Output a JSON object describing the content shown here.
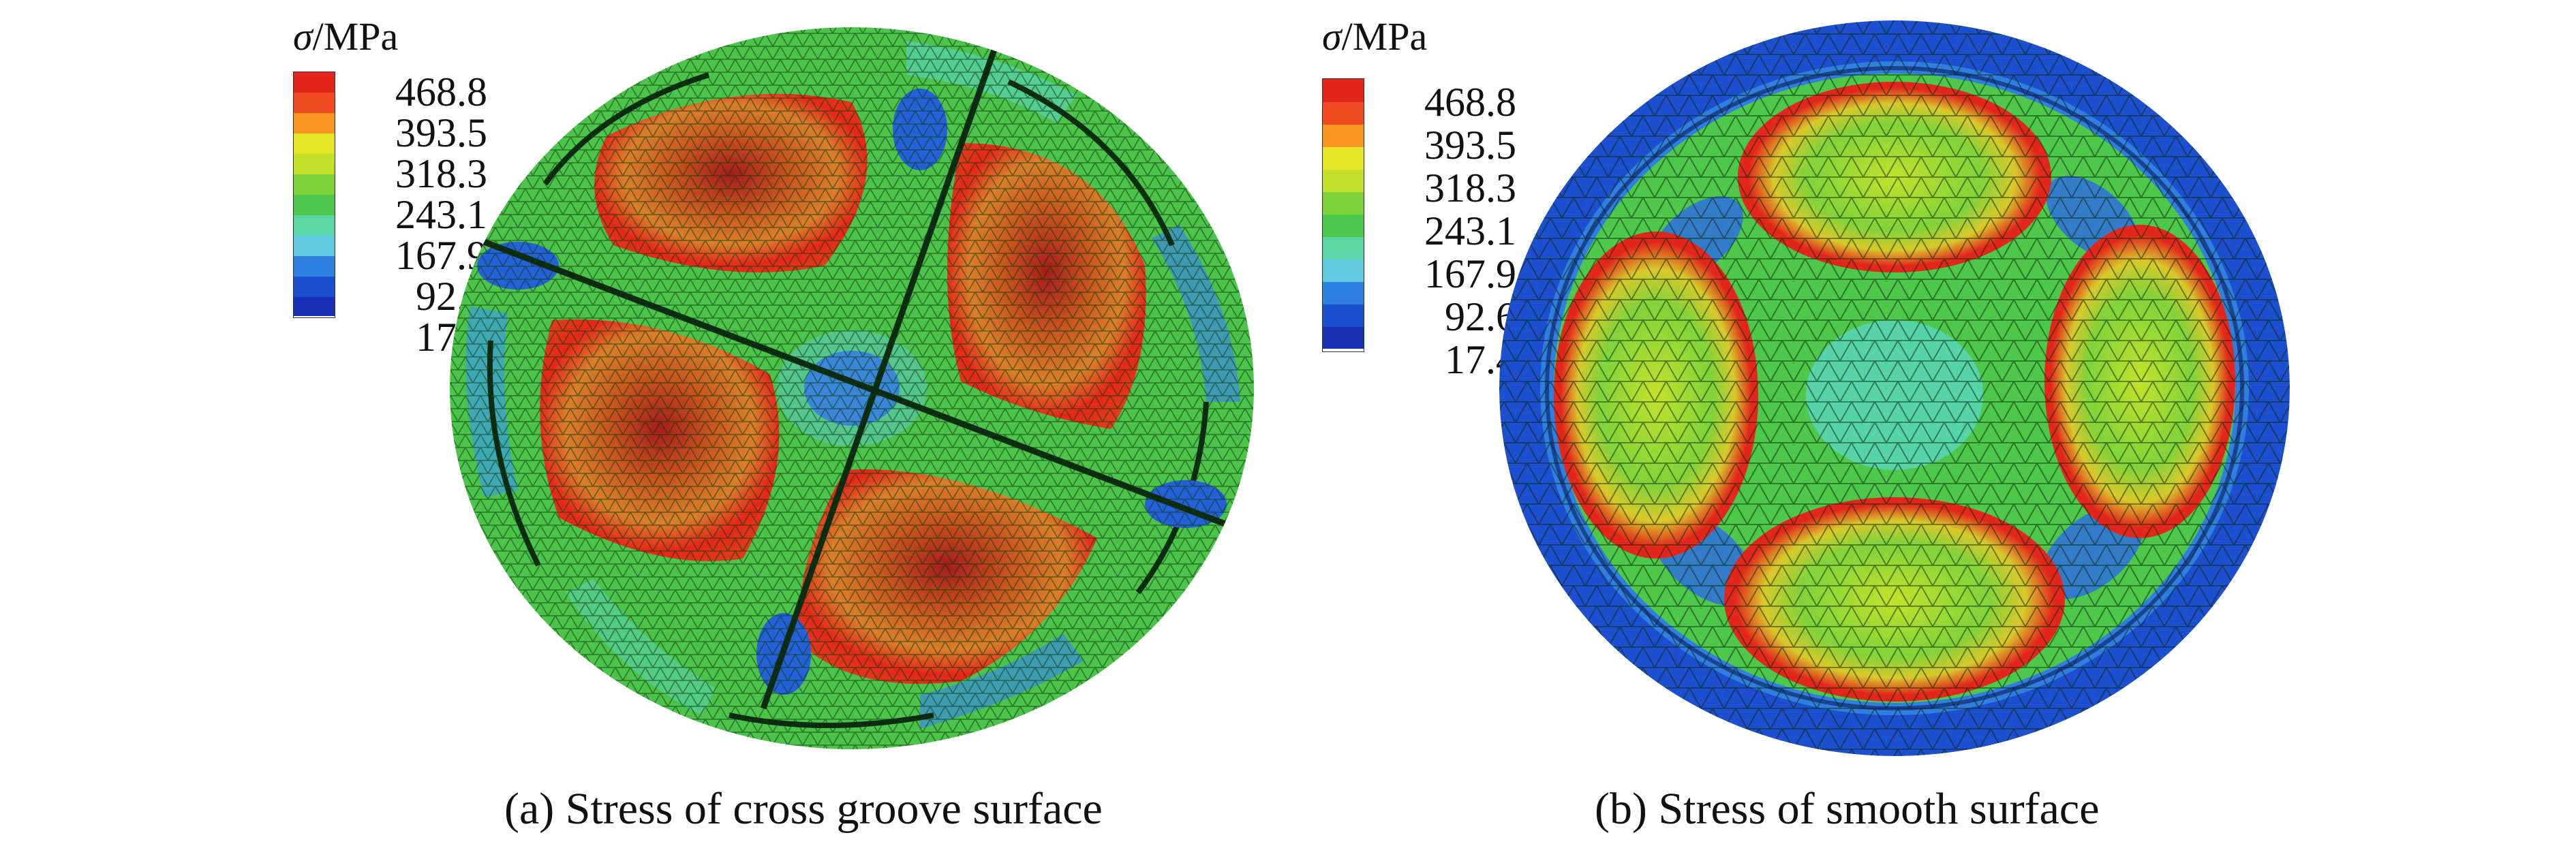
{
  "legend": {
    "symbol": "σ",
    "unit": "/MPa",
    "levels": [
      "468.8",
      "393.5",
      "318.3",
      "243.1",
      "167.9",
      "92.6",
      "17.4"
    ],
    "colors": [
      "#e3261b",
      "#f04a23",
      "#f7931e",
      "#e6e629",
      "#c4e12a",
      "#7fd33a",
      "#4dc84a",
      "#59d6a6",
      "#5fc9e0",
      "#2f7fe0",
      "#1d4fd1",
      "#1a2fb8"
    ]
  },
  "panels": [
    {
      "caption": "(a) Stress of cross groove surface",
      "surface": "cross-groove"
    },
    {
      "caption": "(b) Stress of smooth surface",
      "surface": "smooth"
    }
  ]
}
